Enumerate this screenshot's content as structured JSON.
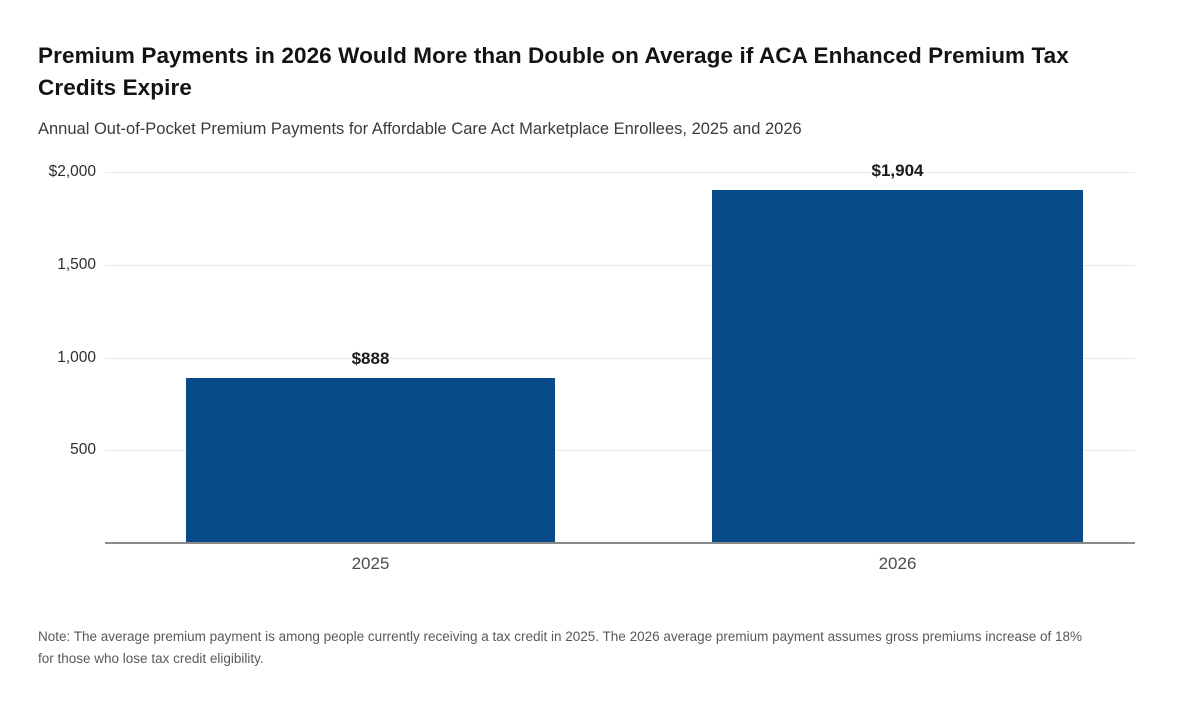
{
  "chart_data": {
    "type": "bar",
    "title": "Premium Payments in 2026 Would More than Double on Average if ACA Enhanced Premium Tax Credits Expire",
    "subtitle": "Annual Out-of-Pocket Premium Payments for Affordable Care Act Marketplace Enrollees, 2025 and 2026",
    "categories": [
      "2025",
      "2026"
    ],
    "values": [
      888,
      1904
    ],
    "value_labels": [
      "$888",
      "$1,904"
    ],
    "xlabel": "",
    "ylabel": "",
    "ylim": [
      0,
      2000
    ],
    "y_ticks": [
      {
        "value": 2000,
        "label": "$2,000"
      },
      {
        "value": 1500,
        "label": "1,500"
      },
      {
        "value": 1000,
        "label": "1,000"
      },
      {
        "value": 500,
        "label": "500"
      }
    ],
    "grid": true,
    "legend": "none",
    "bar_color": "#064B87",
    "gridline_color": "#e9e9e9",
    "axis_line_color": "#8a8a8a",
    "note": "Note: The average premium payment is among people currently receiving a tax credit in 2025. The 2026 average premium payment assumes gross premiums increase of 18% for those who lose tax credit eligibility."
  }
}
